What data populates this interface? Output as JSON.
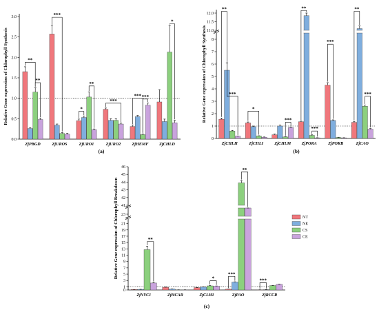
{
  "colors": {
    "NT": "#f0777c",
    "NE": "#7faede",
    "CS": "#8cd07e",
    "CE": "#c9a3dd"
  },
  "legend": {
    "items": [
      {
        "key": "NT",
        "label": "NT"
      },
      {
        "key": "NE",
        "label": "NE"
      },
      {
        "key": "CS",
        "label": "CS"
      },
      {
        "key": "CE",
        "label": "CE"
      }
    ]
  },
  "chart_data": [
    {
      "id": "a",
      "type": "bar",
      "panel_label": "(a)",
      "ylabel": "Relative Gene expression of Chlorophyll Synthesis",
      "ylim": [
        0,
        3.1
      ],
      "yticks": [
        "0.0",
        "0.5",
        "1.0",
        "1.5",
        "2.0",
        "2.5",
        "3.0"
      ],
      "ytick_values": [
        0,
        0.5,
        1.0,
        1.5,
        2.0,
        2.5,
        3.0
      ],
      "reference_line": 1.0,
      "categories": [
        "ZjPBGD",
        "ZjUROS",
        "ZjURO1",
        "ZjURO2",
        "ZjHEMF",
        "ZjCHLD"
      ],
      "series": [
        {
          "key": "NT",
          "values": [
            1.65,
            2.57,
            0.45,
            0.73,
            0.31,
            0.91
          ],
          "errors": [
            0.12,
            0.2,
            0.04,
            0.03,
            0.03,
            0.3
          ]
        },
        {
          "key": "NE",
          "values": [
            0.26,
            0.34,
            0.53,
            0.46,
            0.55,
            0.43
          ],
          "errors": [
            0.02,
            0.03,
            0.03,
            0.04,
            0.03,
            0.06
          ]
        },
        {
          "key": "CS",
          "values": [
            1.15,
            0.14,
            1.03,
            0.46,
            0.11,
            2.13
          ],
          "errors": [
            0.11,
            0.02,
            0.12,
            0.04,
            0.02,
            0.65
          ]
        },
        {
          "key": "CE",
          "values": [
            0.48,
            0.12,
            0.23,
            0.37,
            0.83,
            0.4
          ],
          "errors": [
            0.03,
            0.02,
            0.02,
            0.02,
            0.05,
            0.06
          ]
        }
      ],
      "significance": [
        {
          "cat": 0,
          "from": 0,
          "to": 2,
          "y": 1.88,
          "label": "**"
        },
        {
          "cat": 0,
          "from": 2,
          "to": 3,
          "y": 1.38,
          "label": "**"
        },
        {
          "cat": 1,
          "from": 0,
          "to": 2,
          "y": 2.98,
          "label": "***"
        },
        {
          "cat": 2,
          "from": 0,
          "to": 1,
          "y": 0.68,
          "label": "*"
        },
        {
          "cat": 2,
          "from": 2,
          "to": 3,
          "y": 1.3,
          "label": "**"
        },
        {
          "cat": 3,
          "from": 0,
          "to": 3,
          "y": 0.88,
          "label": "***"
        },
        {
          "cat": 4,
          "from": 0,
          "to": 2,
          "y": 1.0,
          "label": "***"
        },
        {
          "cat": 4,
          "from": 2,
          "to": 3,
          "y": 0.98,
          "label": "***"
        },
        {
          "cat": 5,
          "from": 2,
          "to": 3,
          "y": 2.82,
          "label": "*"
        }
      ]
    },
    {
      "id": "b",
      "type": "bar",
      "panel_label": "(b)",
      "ylabel": "Relative Gene expression of Chlorophyll Synthesis",
      "broken_axis": {
        "lower": [
          0,
          8.5
        ],
        "upper": [
          11.0,
          12.2
        ]
      },
      "yticks_lower": [
        "0",
        "1",
        "2",
        "3",
        "4",
        "5",
        "6",
        "7",
        "8"
      ],
      "ytick_values_lower": [
        0,
        1,
        2,
        3,
        4,
        5,
        6,
        7,
        8
      ],
      "yticks_upper": [
        "11.0",
        "11.5",
        "12.0"
      ],
      "ytick_values_upper": [
        11.0,
        11.5,
        12.0
      ],
      "reference_line": 1.0,
      "categories": [
        "ZjCHLH",
        "ZjCHLI",
        "ZjCHLM",
        "ZjPORA",
        "ZjPORB",
        "ZjCAO"
      ],
      "series": [
        {
          "key": "NT",
          "values": [
            1.55,
            1.25,
            0.3,
            1.35,
            4.3,
            1.3
          ],
          "errors": [
            0.1,
            0.08,
            0.05,
            0.05,
            0.2,
            0.06
          ]
        },
        {
          "key": "NE",
          "values": [
            5.5,
            0.95,
            1.0,
            11.85,
            1.45,
            11.1
          ],
          "errors": [
            0.6,
            0.05,
            0.08,
            0.15,
            0.05,
            0.15
          ]
        },
        {
          "key": "CS",
          "values": [
            0.6,
            0.2,
            0.12,
            0.25,
            0.08,
            2.6
          ],
          "errors": [
            0.05,
            0.02,
            0.02,
            0.04,
            0.02,
            0.1
          ]
        },
        {
          "key": "CE",
          "values": [
            0.18,
            0.1,
            0.88,
            0.05,
            0.05,
            0.75
          ],
          "errors": [
            0.02,
            0.02,
            0.05,
            0.01,
            0.01,
            0.05
          ]
        }
      ],
      "significance": [
        {
          "cat": 0,
          "from": 0,
          "to": 1,
          "y": 12.1,
          "label": "**"
        },
        {
          "cat": 0,
          "from": 1,
          "to": 3,
          "y": 3.4,
          "label": "***"
        },
        {
          "cat": 1,
          "from": 0,
          "to": 2,
          "y": 2.2,
          "label": "*"
        },
        {
          "cat": 2,
          "from": 2,
          "to": 3,
          "y": 1.3,
          "label": "***"
        },
        {
          "cat": 3,
          "from": 0,
          "to": 1,
          "y": 12.15,
          "label": "**"
        },
        {
          "cat": 3,
          "from": 2,
          "to": 3,
          "y": 0.6,
          "label": "***"
        },
        {
          "cat": 4,
          "from": 0,
          "to": 1,
          "y": 7.6,
          "label": "***"
        },
        {
          "cat": 5,
          "from": 0,
          "to": 1,
          "y": 12.1,
          "label": "**"
        },
        {
          "cat": 5,
          "from": 2,
          "to": 3,
          "y": 3.4,
          "label": "***"
        }
      ]
    },
    {
      "id": "c",
      "type": "bar",
      "panel_label": "(c)",
      "ylabel": "Relative Gene expression of Chlorophyll Breakdown",
      "broken_axis": {
        "lower": [
          0,
          22
        ],
        "middle": [
          23,
          24
        ],
        "upper": [
          41,
          46
        ]
      },
      "yticks_lower": [
        "0",
        "1",
        "3",
        "5",
        "7",
        "9",
        "11",
        "13",
        "15",
        "17",
        "19",
        "21"
      ],
      "ytick_values_lower": [
        0,
        1,
        3,
        5,
        7,
        9,
        11,
        13,
        15,
        17,
        19,
        21
      ],
      "yticks_middle": [
        "23"
      ],
      "ytick_values_middle": [
        23
      ],
      "yticks_upper": [
        "41",
        "42",
        "43",
        "44",
        "45",
        "46"
      ],
      "ytick_values_upper": [
        41,
        42,
        43,
        44,
        45,
        46
      ],
      "reference_line": 1.0,
      "categories": [
        "ZjNYC1",
        "ZjHCAR",
        "ZjCLH1",
        "ZjPAO",
        "ZjRCCR"
      ],
      "series": [
        {
          "key": "NT",
          "values": [
            0.15,
            0.85,
            0.75,
            0.25,
            0.05
          ],
          "errors": [
            0.02,
            0.05,
            0.05,
            0.03,
            0.01
          ]
        },
        {
          "key": "NE",
          "values": [
            0.2,
            0.3,
            0.9,
            2.5,
            0.1
          ],
          "errors": [
            0.02,
            0.03,
            0.05,
            0.1,
            0.02
          ]
        },
        {
          "key": "CS",
          "values": [
            12.75,
            0.05,
            1.3,
            43.9,
            1.4
          ],
          "errors": [
            1.1,
            0.01,
            0.1,
            0.3,
            0.08
          ]
        },
        {
          "key": "CE",
          "values": [
            2.2,
            0.05,
            1.2,
            24.3,
            1.8
          ],
          "errors": [
            0.2,
            0.01,
            0.08,
            0.3,
            0.08
          ]
        }
      ],
      "significance": [
        {
          "cat": 0,
          "from": 2,
          "to": 3,
          "y": 15.3,
          "label": "**"
        },
        {
          "cat": 2,
          "from": 2,
          "to": 3,
          "y": 2.9,
          "label": "*"
        },
        {
          "cat": 3,
          "from": 0,
          "to": 1,
          "y": 4.3,
          "label": "***"
        },
        {
          "cat": 3,
          "from": 2,
          "to": 3,
          "y": 45.3,
          "label": "**"
        },
        {
          "cat": 4,
          "from": 0,
          "to": 1,
          "y": 2.3,
          "label": "***"
        }
      ]
    }
  ]
}
